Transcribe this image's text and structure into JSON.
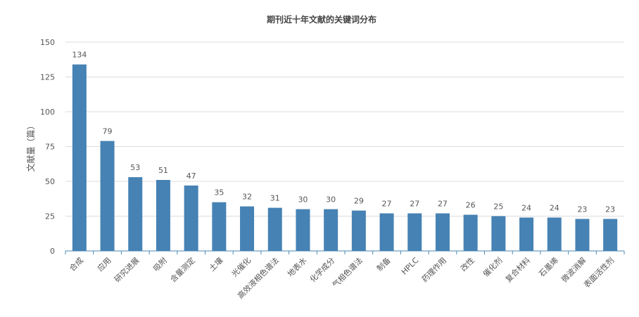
{
  "chart_data": {
    "type": "bar",
    "title": "期刊近十年文献的关键词分布",
    "xlabel": "",
    "ylabel": "文献量（篇）",
    "ylim": [
      0,
      150
    ],
    "yticks": [
      0,
      25,
      50,
      75,
      100,
      125,
      150
    ],
    "grid": true,
    "legend": "none",
    "bar_color": "#4682b4",
    "categories": [
      "合成",
      "应用",
      "研究进展",
      "吸附",
      "含量测定",
      "土壤",
      "光催化",
      "高效液相色谱法",
      "地表水",
      "化学成分",
      "气相色谱法",
      "制备",
      "HPLC",
      "药理作用",
      "改性",
      "催化剂",
      "复合材料",
      "石墨烯",
      "微波消解",
      "表面活性剂"
    ],
    "values": [
      134,
      79,
      53,
      51,
      47,
      35,
      32,
      31,
      30,
      30,
      29,
      27,
      27,
      27,
      26,
      25,
      24,
      24,
      23,
      23
    ]
  }
}
